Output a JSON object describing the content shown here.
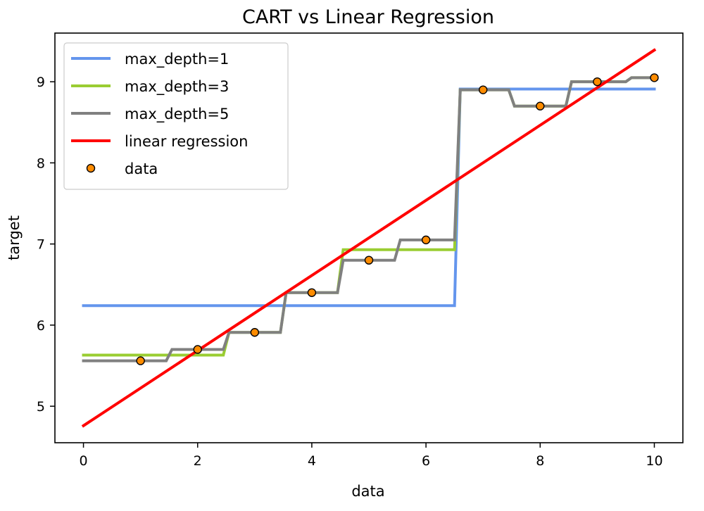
{
  "chart_data": {
    "type": "line",
    "title": "CART vs Linear Regression",
    "xlabel": "data",
    "ylabel": "target",
    "xlim": [
      -0.5,
      10.5
    ],
    "ylim": [
      4.55,
      9.6
    ],
    "xticks": [
      0,
      2,
      4,
      6,
      8,
      10
    ],
    "yticks": [
      5,
      6,
      7,
      8,
      9
    ],
    "grid": false,
    "legend_position": "top-left",
    "series": [
      {
        "name": "max_depth=1",
        "kind": "step-line",
        "color": "#6495ed",
        "points": [
          [
            0,
            6.24
          ],
          [
            6.5,
            6.24
          ],
          [
            6.6,
            8.91
          ],
          [
            10,
            8.91
          ]
        ]
      },
      {
        "name": "max_depth=3",
        "kind": "step-line",
        "color": "#9acd32",
        "points": [
          [
            0,
            5.63
          ],
          [
            2.45,
            5.63
          ],
          [
            2.55,
            5.91
          ],
          [
            3.45,
            5.91
          ],
          [
            3.55,
            6.4
          ],
          [
            4.45,
            6.4
          ],
          [
            4.55,
            6.93
          ],
          [
            6.5,
            6.93
          ],
          [
            6.6,
            8.9
          ],
          [
            7.45,
            8.9
          ],
          [
            7.55,
            8.7
          ],
          [
            8.45,
            8.7
          ],
          [
            8.55,
            9.0
          ],
          [
            9.5,
            9.0
          ],
          [
            9.6,
            9.05
          ],
          [
            10,
            9.05
          ]
        ]
      },
      {
        "name": "max_depth=5",
        "kind": "step-line",
        "color": "#808080",
        "points": [
          [
            0,
            5.56
          ],
          [
            1.45,
            5.56
          ],
          [
            1.55,
            5.7
          ],
          [
            2.45,
            5.7
          ],
          [
            2.55,
            5.91
          ],
          [
            3.45,
            5.91
          ],
          [
            3.55,
            6.4
          ],
          [
            4.45,
            6.4
          ],
          [
            4.55,
            6.8
          ],
          [
            5.45,
            6.8
          ],
          [
            5.55,
            7.05
          ],
          [
            6.5,
            7.05
          ],
          [
            6.6,
            8.9
          ],
          [
            7.45,
            8.9
          ],
          [
            7.55,
            8.7
          ],
          [
            8.45,
            8.7
          ],
          [
            8.55,
            9.0
          ],
          [
            9.5,
            9.0
          ],
          [
            9.6,
            9.05
          ],
          [
            10,
            9.05
          ]
        ]
      },
      {
        "name": "linear regression",
        "kind": "line",
        "color": "#ff0000",
        "points": [
          [
            0,
            4.76
          ],
          [
            10,
            9.39
          ]
        ]
      }
    ],
    "scatter": {
      "name": "data",
      "color": "#ff8c00",
      "edge_color": "#000000",
      "x": [
        1,
        2,
        3,
        4,
        5,
        6,
        7,
        8,
        9,
        10
      ],
      "y": [
        5.56,
        5.7,
        5.91,
        6.4,
        6.8,
        7.05,
        8.9,
        8.7,
        9.0,
        9.05
      ]
    }
  }
}
